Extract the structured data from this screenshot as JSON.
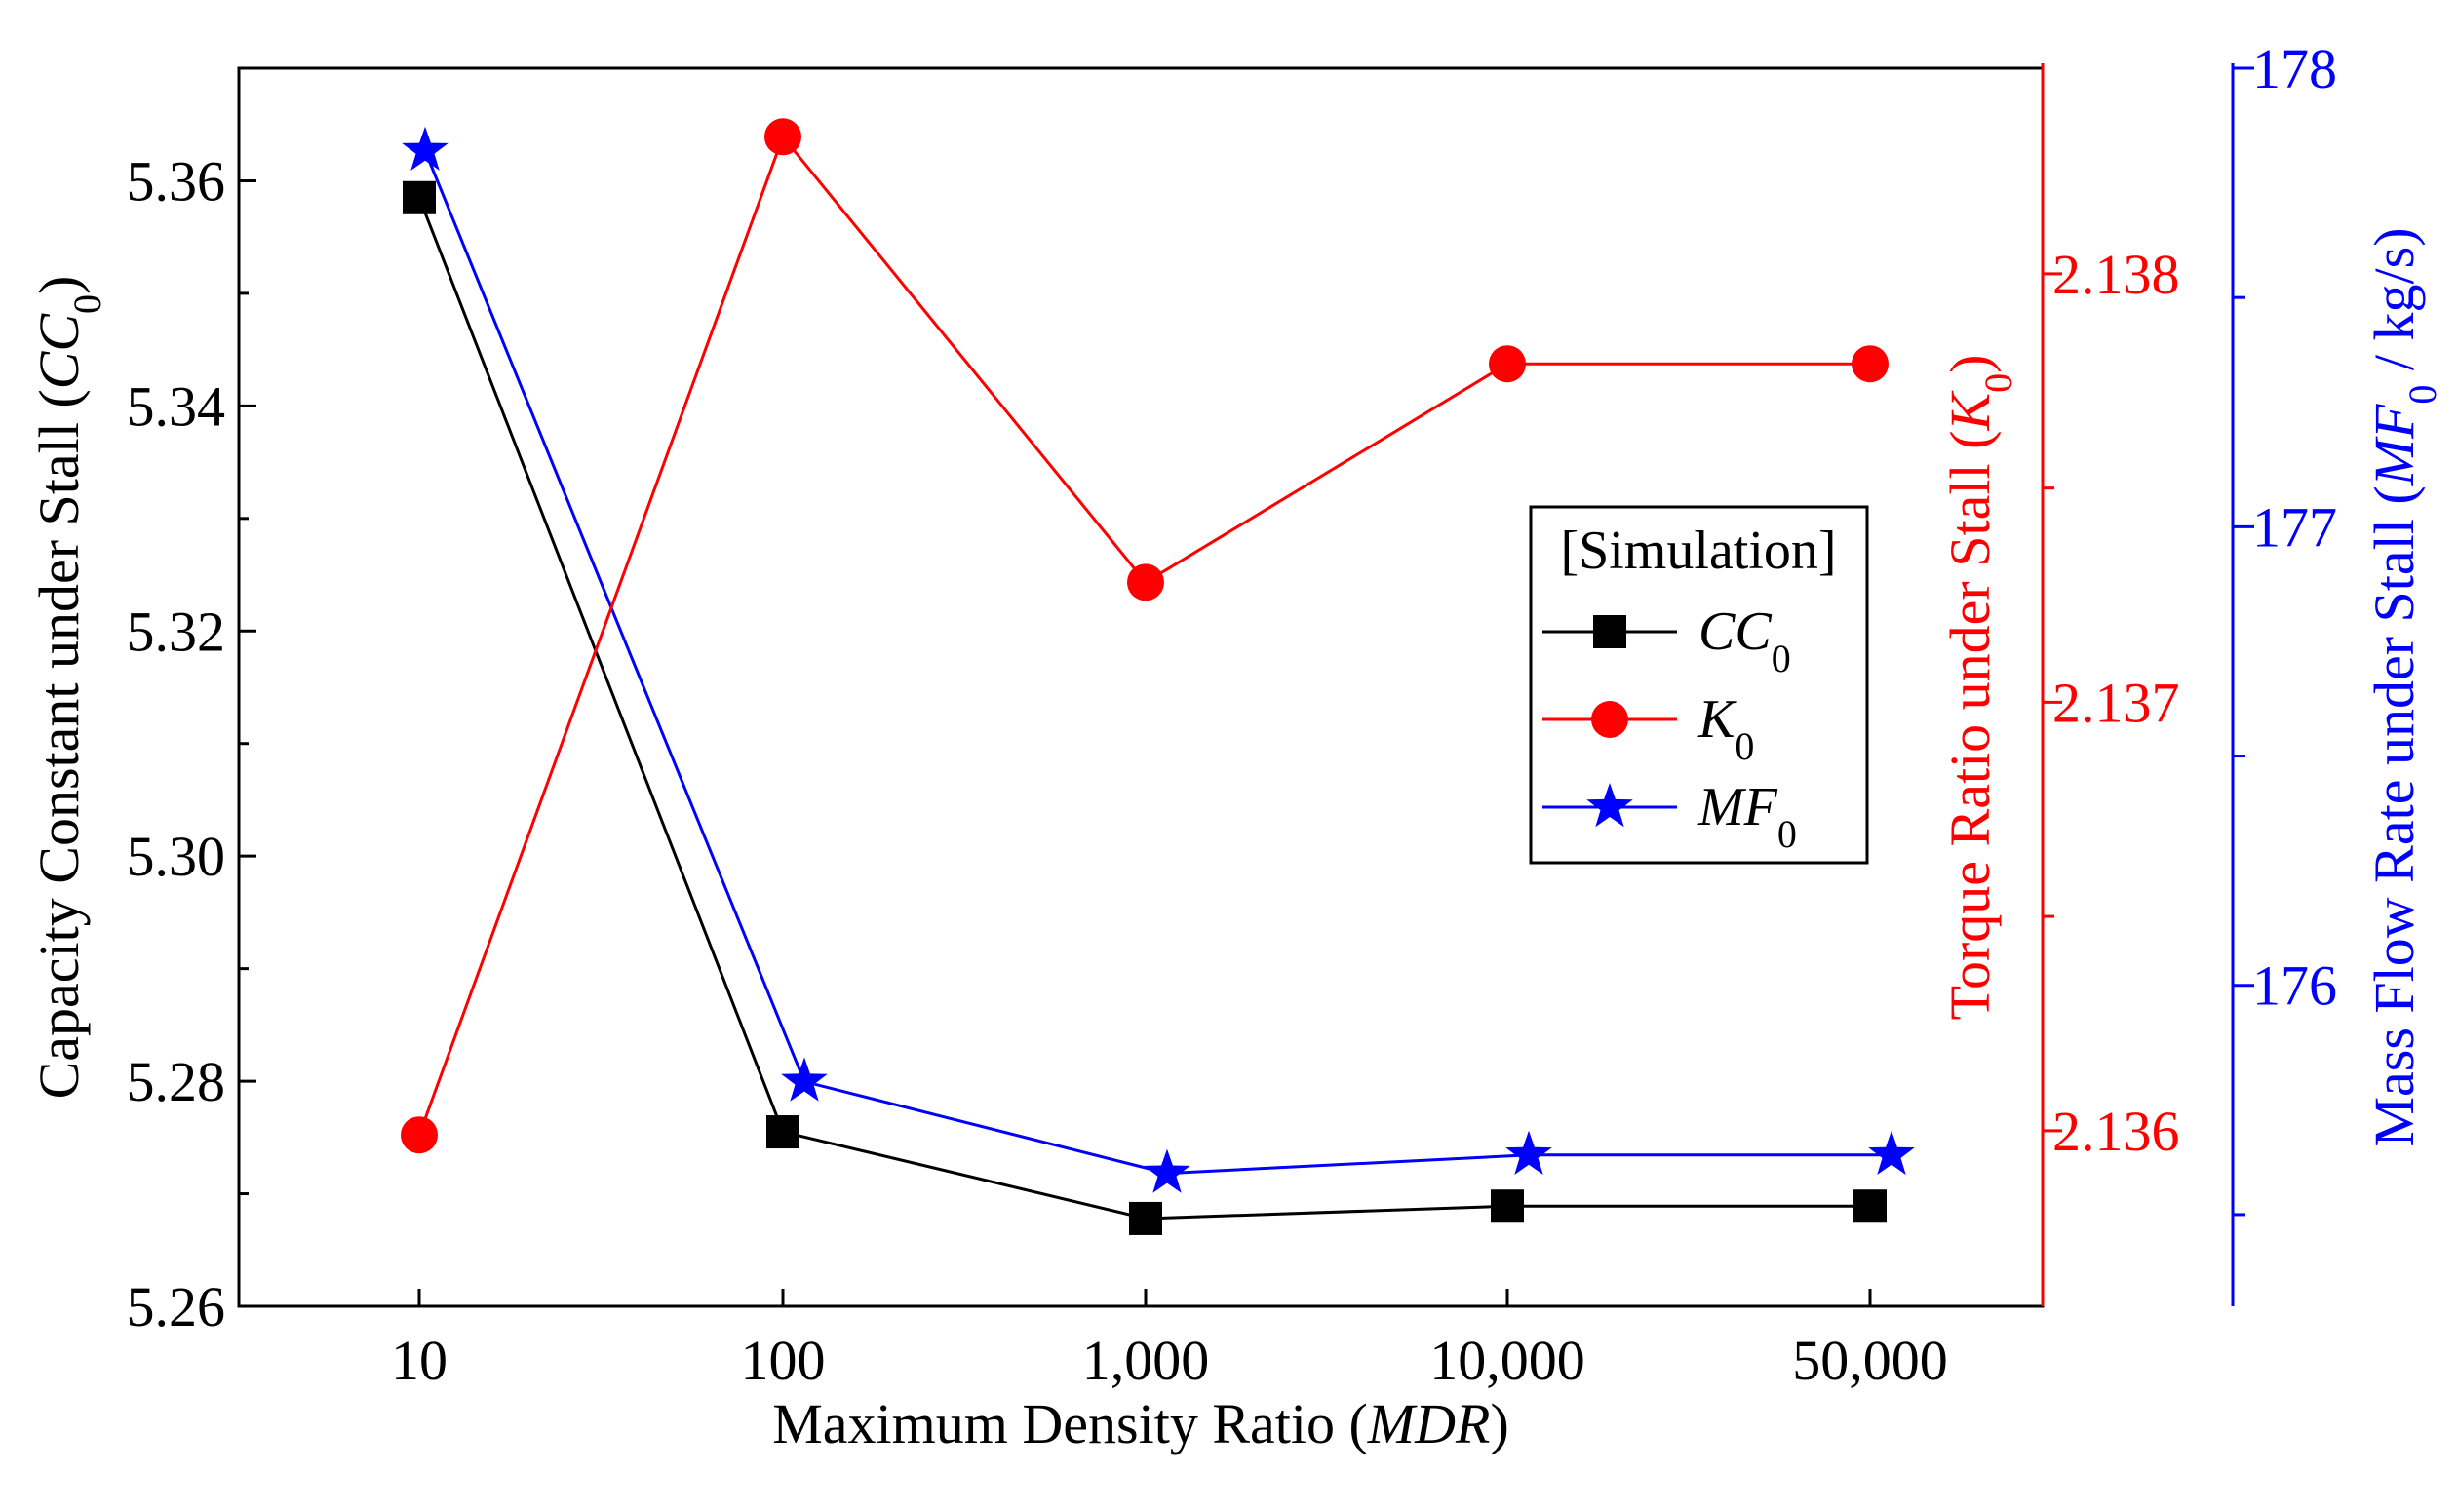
{
  "chart_data": {
    "type": "line",
    "categories": [
      "10",
      "100",
      "1,000",
      "10,000",
      "50,000"
    ],
    "xlabel": "Maximum Density Ratio (MDR)",
    "xlabel_parts": {
      "text": "Maximum Density Ratio (",
      "var": "MDR",
      "close": ")"
    },
    "axes": {
      "left": {
        "label_text": "Capacity Constant under Stall (",
        "label_var": "CC",
        "label_sub": "0",
        "label_close": ")",
        "range": [
          5.26,
          5.37
        ],
        "ticks": [
          5.26,
          5.28,
          5.3,
          5.32,
          5.34,
          5.36
        ],
        "tick_labels": [
          "5.26",
          "5.28",
          "5.30",
          "5.32",
          "5.34",
          "5.36"
        ],
        "color": "#000000"
      },
      "right1": {
        "label_text": "Torque Ratio under Stall (",
        "label_var": "K",
        "label_sub": "0",
        "label_close": ")",
        "range": [
          2.13559,
          2.13848
        ],
        "ticks": [
          2.136,
          2.137,
          2.138
        ],
        "tick_labels": [
          "2.136",
          "2.137",
          "2.138"
        ],
        "color": "#ff0000"
      },
      "right2": {
        "label_text": "Mass Flow Rate under Stall (",
        "label_var": "MF",
        "label_sub": "0",
        "label_close": " / kg/s)",
        "range": [
          175.3,
          178
        ],
        "ticks": [
          176,
          177,
          178
        ],
        "tick_labels": [
          "176",
          "177",
          "178"
        ],
        "color": "#0000ff"
      }
    },
    "legend": {
      "title": "[Simulation]",
      "position": "center-right"
    },
    "series": [
      {
        "name": "CC0",
        "label_var": "CC",
        "label_sub": "0",
        "axis": "left",
        "color": "#000000",
        "marker": "square",
        "values": [
          5.3585,
          5.2755,
          5.2678,
          5.2689,
          5.2689
        ]
      },
      {
        "name": "K0",
        "label_var": "K",
        "label_sub": "0",
        "axis": "right1",
        "color": "#ff0000",
        "marker": "circle",
        "values": [
          2.13599,
          2.13832,
          2.13728,
          2.13779,
          2.13779
        ]
      },
      {
        "name": "MF0",
        "label_var": "MF",
        "label_sub": "0",
        "axis": "right2",
        "color": "#0000ff",
        "marker": "star",
        "values": [
          177.82,
          175.79,
          175.59,
          175.63,
          175.63
        ]
      }
    ]
  }
}
